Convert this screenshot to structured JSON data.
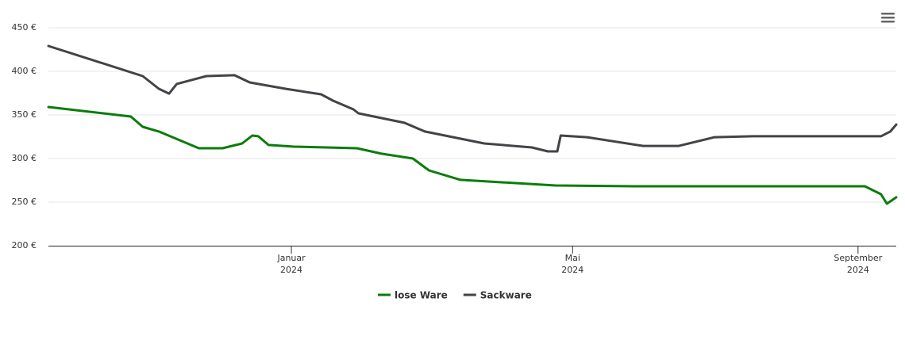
{
  "chart_data": {
    "type": "line",
    "grid": true,
    "legend": "bottom",
    "ylim": [
      200,
      450
    ],
    "yticks": [
      {
        "value": 200,
        "label": "200 €"
      },
      {
        "value": 250,
        "label": "250 €"
      },
      {
        "value": 300,
        "label": "300 €"
      },
      {
        "value": 350,
        "label": "350 €"
      },
      {
        "value": 400,
        "label": "400 €"
      },
      {
        "value": 450,
        "label": "450 €"
      }
    ],
    "xlim": [
      2023.714,
      2024.712
    ],
    "xticks": [
      {
        "value": 2024.0,
        "label": "Januar",
        "sublabel": "2024"
      },
      {
        "value": 2024.331,
        "label": "Mai",
        "sublabel": "2024"
      },
      {
        "value": 2024.667,
        "label": "September",
        "sublabel": "2024"
      }
    ],
    "series": [
      {
        "name": "lose Ware",
        "color": "#0a7d0a",
        "x": [
          2023.714,
          2023.811,
          2023.825,
          2023.844,
          2023.891,
          2023.919,
          2023.942,
          2023.954,
          2023.961,
          2023.973,
          2024.003,
          2024.077,
          2024.106,
          2024.143,
          2024.162,
          2024.199,
          2024.311,
          2024.404,
          2024.675,
          2024.694,
          2024.701,
          2024.712
        ],
        "values": [
          359.1,
          348.2,
          336.4,
          331,
          311.8,
          311.8,
          317.3,
          326.4,
          325.5,
          315.5,
          313.6,
          311.8,
          305.5,
          300,
          286.4,
          275.5,
          269.1,
          268.2,
          268.2,
          259.1,
          248.2,
          255.5
        ]
      },
      {
        "name": "Sackware",
        "color": "#434348",
        "x": [
          2023.714,
          2023.825,
          2023.844,
          2023.856,
          2023.865,
          2023.9,
          2023.933,
          2023.951,
          2023.993,
          2024.035,
          2024.049,
          2024.073,
          2024.079,
          2024.133,
          2024.157,
          2024.227,
          2024.283,
          2024.302,
          2024.313,
          2024.317,
          2024.348,
          2024.414,
          2024.456,
          2024.498,
          2024.544,
          2024.694,
          2024.705,
          2024.712
        ],
        "values": [
          429.1,
          394.5,
          380,
          374.5,
          385.5,
          394.5,
          395.5,
          387.3,
          380,
          373.6,
          366.4,
          356.4,
          351.8,
          341,
          331,
          317.3,
          312.7,
          308.2,
          308.2,
          326.4,
          324.5,
          314.5,
          314.5,
          324.5,
          325.5,
          325.5,
          331,
          339
        ]
      }
    ]
  }
}
